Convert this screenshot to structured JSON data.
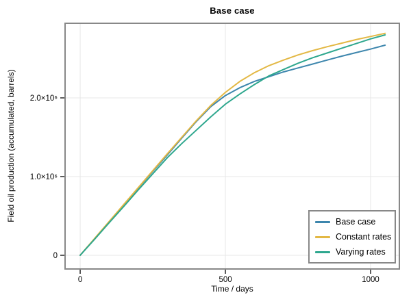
{
  "chart_data": {
    "type": "line",
    "title": "Base case",
    "xlabel": "Time / days",
    "ylabel": "Field oil production (accumulated, barrels)",
    "xlim": [
      -52,
      1099
    ],
    "ylim": [
      -174000,
      2948000
    ],
    "grid": true,
    "legend_position": "bottom-right",
    "xticks": {
      "values": [
        0,
        500,
        1000
      ],
      "labels": [
        "0",
        "500",
        "1000"
      ]
    },
    "yticks": {
      "values": [
        0,
        1000000,
        2000000
      ],
      "labels": [
        "0",
        "1.0×10⁶",
        "2.0×10⁶"
      ]
    },
    "x": [
      0,
      50,
      100,
      150,
      200,
      250,
      300,
      350,
      400,
      450,
      500,
      550,
      600,
      650,
      700,
      750,
      800,
      850,
      900,
      950,
      1000,
      1050
    ],
    "series": [
      {
        "name": "Base case",
        "color": "#3d86ad",
        "values": [
          0,
          210000,
          425000,
          640000,
          855000,
          1065000,
          1275000,
          1490000,
          1700000,
          1890000,
          2030000,
          2130000,
          2210000,
          2270000,
          2330000,
          2380000,
          2430000,
          2480000,
          2530000,
          2575000,
          2620000,
          2670000
        ]
      },
      {
        "name": "Constant rates",
        "color": "#e3b844",
        "values": [
          0,
          215000,
          430000,
          645000,
          860000,
          1075000,
          1290000,
          1500000,
          1710000,
          1905000,
          2070000,
          2210000,
          2320000,
          2410000,
          2480000,
          2545000,
          2600000,
          2650000,
          2695000,
          2740000,
          2780000,
          2820000
        ]
      },
      {
        "name": "Varying rates",
        "color": "#2ea78e",
        "values": [
          0,
          205000,
          415000,
          620000,
          830000,
          1035000,
          1240000,
          1420000,
          1590000,
          1760000,
          1920000,
          2050000,
          2170000,
          2280000,
          2360000,
          2440000,
          2510000,
          2570000,
          2630000,
          2690000,
          2750000,
          2800000
        ]
      }
    ]
  },
  "styles": {
    "background": "#ffffff",
    "frame_color": "#888888",
    "grid_color": "#e7e7e7",
    "tick_color": "#262626",
    "text_color": "#000000"
  }
}
